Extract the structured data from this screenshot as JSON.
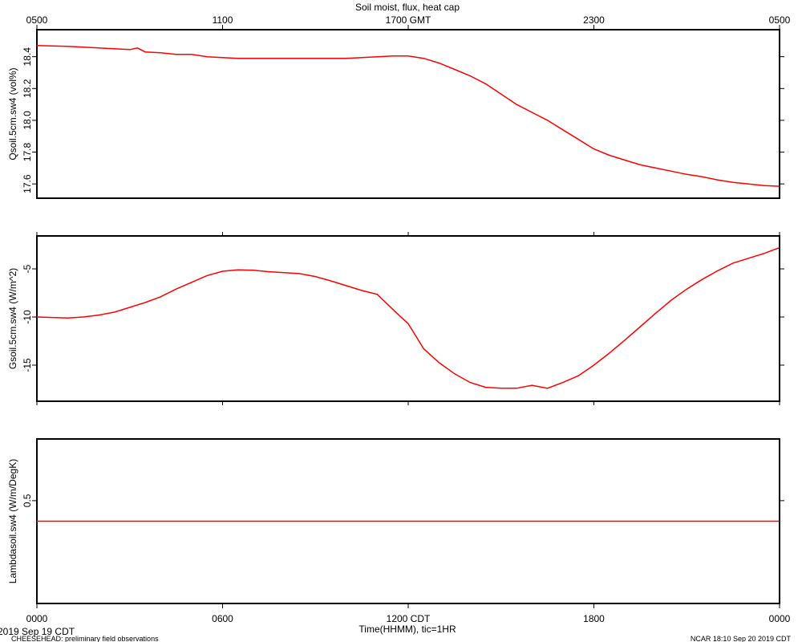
{
  "chart_data": [
    {
      "type": "line",
      "title": "Soil moist, flux, heat cap",
      "ylabel": "Qsoil.5cm.sw4 (vol%)",
      "color": "#ff0000",
      "xlim": [
        0,
        24
      ],
      "ylim": [
        17.51,
        18.57
      ],
      "yticks": [
        17.6,
        17.8,
        {
          "value": 18,
          "label": "18.0"
        },
        18.2,
        18.4
      ],
      "x2ticks": [
        {
          "value": 0,
          "label": "0500"
        },
        {
          "value": 6,
          "label": "1100"
        },
        {
          "value": 12,
          "label": "1700 GMT"
        },
        {
          "value": 18,
          "label": "2300"
        },
        {
          "value": 24,
          "label": "0500"
        }
      ],
      "x": [
        0,
        1,
        1.5,
        2,
        2.5,
        3,
        3.25,
        3.5,
        4,
        4.5,
        5,
        5.5,
        6,
        6.5,
        7,
        8,
        9,
        10,
        10.5,
        11,
        11.5,
        12,
        12.5,
        13,
        13.5,
        14,
        14.5,
        15,
        15.5,
        16,
        16.5,
        17,
        17.5,
        18,
        18.5,
        19,
        19.5,
        20,
        20.5,
        21,
        21.5,
        22,
        22.5,
        23,
        23.5,
        24
      ],
      "values": [
        18.47,
        18.465,
        18.46,
        18.455,
        18.45,
        18.445,
        18.455,
        18.43,
        18.425,
        18.415,
        18.415,
        18.4,
        18.395,
        18.39,
        18.39,
        18.39,
        18.39,
        18.39,
        18.395,
        18.4,
        18.405,
        18.405,
        18.39,
        18.36,
        18.32,
        18.28,
        18.23,
        18.165,
        18.1,
        18.05,
        18.0,
        17.94,
        17.88,
        17.82,
        17.78,
        17.75,
        17.72,
        17.7,
        17.68,
        17.66,
        17.645,
        17.625,
        17.61,
        17.6,
        17.59,
        17.585
      ]
    },
    {
      "type": "line",
      "ylabel": "Gsoil.5cm.sw4 (W/m^2)",
      "color": "#ff0000",
      "xlim": [
        0,
        24
      ],
      "ylim": [
        -18.75,
        -1.58
      ],
      "yticks": [
        -15,
        -10,
        -5
      ],
      "x": [
        0,
        1,
        1.5,
        2,
        2.5,
        3,
        3.5,
        4,
        4.5,
        5,
        5.5,
        6,
        6.5,
        7,
        7.5,
        8,
        8.5,
        9,
        9.5,
        10,
        10.5,
        11,
        11.5,
        12,
        12.5,
        13,
        13.5,
        14,
        14.5,
        15,
        15.5,
        16,
        16.5,
        17,
        17.5,
        18,
        18.5,
        19,
        19.5,
        20,
        20.5,
        21,
        21.5,
        22,
        22.5,
        23,
        23.5,
        24
      ],
      "values": [
        -10,
        -10.1,
        -10,
        -9.8,
        -9.5,
        -9.0,
        -8.5,
        -7.9,
        -7.1,
        -6.4,
        -5.7,
        -5.25,
        -5.1,
        -5.15,
        -5.3,
        -5.4,
        -5.5,
        -5.8,
        -6.25,
        -6.75,
        -7.25,
        -7.65,
        -9.2,
        -10.7,
        -13.3,
        -14.75,
        -15.9,
        -16.8,
        -17.3,
        -17.4,
        -17.4,
        -17.1,
        -17.4,
        -16.8,
        -16.1,
        -15.0,
        -13.75,
        -12.4,
        -11.0,
        -9.6,
        -8.25,
        -7.1,
        -6.1,
        -5.2,
        -4.4,
        -3.9,
        -3.4,
        -2.8
      ]
    },
    {
      "type": "line",
      "ylabel": "Lambdasoil.sw4 (W/m/DegK)",
      "xlabel": "Time(HHMM), tic=1HR",
      "color": "#ff0000",
      "xlim": [
        0,
        24
      ],
      "ylim": [
        0,
        0.8
      ],
      "yticks": [
        0.5
      ],
      "xticks": [
        {
          "value": 0,
          "label": "0000"
        },
        {
          "value": 6,
          "label": "0600"
        },
        {
          "value": 12,
          "label": "1200 CDT"
        },
        {
          "value": 18,
          "label": "1800"
        },
        {
          "value": 24,
          "label": "0000"
        }
      ],
      "x": [
        0,
        24
      ],
      "values": [
        0.4,
        0.4
      ]
    }
  ],
  "date": "2019 Sep 19 CDT",
  "project": "CHEESEHEAD: preliminary field observations",
  "credit": "NCAR 18:10 Sep 20 2019 CDT"
}
